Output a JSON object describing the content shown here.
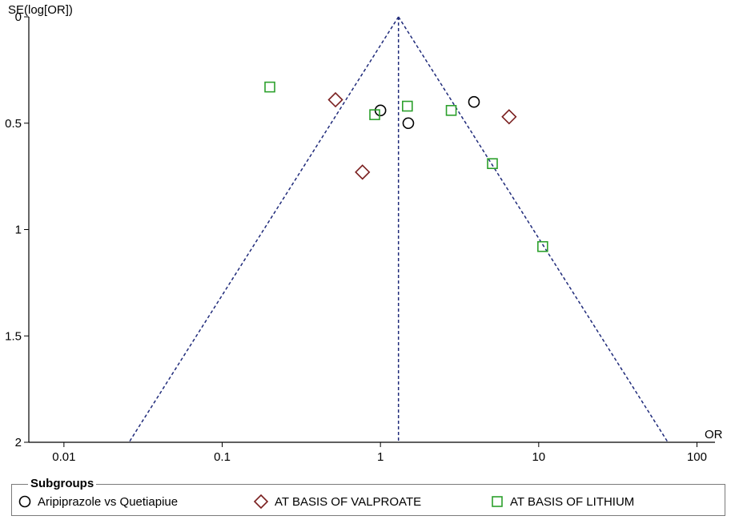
{
  "chart_data": {
    "type": "scatter",
    "title": "",
    "xlabel": "OR",
    "ylabel": "SE(log[OR])",
    "x_scale": "log",
    "xlim": [
      0.006,
      130
    ],
    "ylim": [
      0,
      2
    ],
    "y_inverted": true,
    "x_ticks": [
      0.01,
      0.1,
      1,
      10,
      100
    ],
    "x_tick_labels": [
      "0.01",
      "0.1",
      "1",
      "10",
      "100"
    ],
    "y_ticks": [
      0,
      0.5,
      1,
      1.5,
      2
    ],
    "y_tick_labels": [
      "0",
      "0.5",
      "1",
      "1.5",
      "2"
    ],
    "summary_or": 1.3,
    "funnel_se_max": 2,
    "funnel_color": "#1f2a7a",
    "series": [
      {
        "name": "Aripiprazole vs Quetiapiue",
        "marker": "circle",
        "color": "#000000",
        "points": [
          {
            "x": 1.0,
            "y": 0.44
          },
          {
            "x": 1.5,
            "y": 0.5
          },
          {
            "x": 3.9,
            "y": 0.4
          }
        ]
      },
      {
        "name": "AT BASIS OF VALPROATE",
        "marker": "diamond",
        "color": "#7a1f1f",
        "points": [
          {
            "x": 0.52,
            "y": 0.39
          },
          {
            "x": 0.77,
            "y": 0.73
          },
          {
            "x": 6.5,
            "y": 0.47
          }
        ]
      },
      {
        "name": "AT BASIS OF LITHIUM",
        "marker": "square",
        "color": "#2ca02c",
        "points": [
          {
            "x": 0.2,
            "y": 0.33
          },
          {
            "x": 0.92,
            "y": 0.46
          },
          {
            "x": 1.48,
            "y": 0.42
          },
          {
            "x": 2.8,
            "y": 0.44
          },
          {
            "x": 5.1,
            "y": 0.69
          },
          {
            "x": 10.6,
            "y": 1.08
          }
        ]
      }
    ]
  },
  "legend": {
    "title": "Subgroups",
    "items": [
      {
        "label": "Aripiprazole vs Quetiapiue",
        "marker": "circle",
        "color": "#000000"
      },
      {
        "label": "AT BASIS OF VALPROATE",
        "marker": "diamond",
        "color": "#7a1f1f"
      },
      {
        "label": "AT BASIS OF LITHIUM",
        "marker": "square",
        "color": "#2ca02c"
      }
    ]
  }
}
